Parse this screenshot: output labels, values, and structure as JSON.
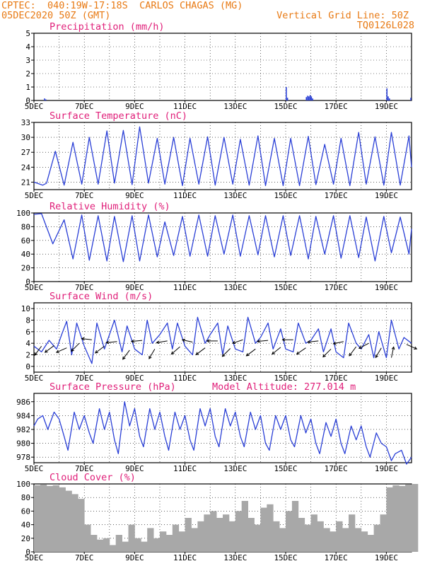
{
  "header": {
    "line1": "CPTEC:  040:19W-17:18S  CARLOS CHAGAS (MG)",
    "line2": "05DEC2020 50Z (GMT)",
    "grid_note": "Vertical Grid Line: 50Z",
    "code": "TQ0126L028"
  },
  "x_ticks": [
    "5DEC",
    "7DEC",
    "9DEC",
    "11DEC",
    "13DEC",
    "15DEC",
    "17DEC",
    "19DEC"
  ],
  "colors": {
    "line": "#2a3fd6",
    "title": "#e0207a",
    "header": "#e87a14",
    "cloud": "#a8a8a8",
    "wind": "#000000"
  },
  "chart_data": [
    {
      "type": "bar",
      "title": "Precipitation (mm/h)",
      "ylim": [
        0,
        5
      ],
      "yticks": [
        0,
        1,
        2,
        3,
        4,
        5
      ],
      "x_days": [
        0.4,
        0.45,
        10.0,
        10.05,
        10.8,
        10.85,
        10.9,
        10.95,
        11.0,
        11.05,
        14.0,
        14.05,
        14.1,
        14.95
      ],
      "values": [
        0.15,
        0.08,
        1.0,
        0.2,
        0.25,
        0.35,
        0.3,
        0.4,
        0.3,
        0.15,
        0.9,
        0.3,
        0.15,
        0.2
      ]
    },
    {
      "type": "line",
      "title": "Surface Temperature (nC)",
      "ylim": [
        19.5,
        33
      ],
      "yticks": [
        21,
        24,
        27,
        30,
        33
      ],
      "x_days": [
        0.0,
        0.35,
        0.5,
        0.85,
        1.2,
        1.55,
        1.9,
        2.2,
        2.55,
        2.9,
        3.2,
        3.55,
        3.9,
        4.2,
        4.55,
        4.9,
        5.2,
        5.55,
        5.9,
        6.2,
        6.55,
        6.9,
        7.2,
        7.55,
        7.9,
        8.2,
        8.55,
        8.9,
        9.2,
        9.55,
        9.9,
        10.2,
        10.55,
        10.9,
        11.2,
        11.55,
        11.9,
        12.2,
        12.55,
        12.9,
        13.2,
        13.55,
        13.9,
        14.2,
        14.55,
        14.9,
        15.0
      ],
      "values": [
        21.0,
        20.4,
        20.8,
        27.2,
        20.4,
        29.0,
        20.6,
        30.0,
        20.6,
        31.3,
        20.8,
        31.4,
        20.5,
        32.1,
        20.8,
        29.8,
        20.6,
        30.0,
        20.3,
        29.8,
        20.6,
        30.1,
        20.4,
        30.0,
        20.6,
        29.6,
        20.4,
        30.3,
        20.3,
        29.8,
        20.3,
        29.8,
        20.3,
        30.2,
        20.5,
        28.6,
        20.6,
        29.8,
        20.3,
        31.0,
        20.6,
        30.1,
        20.4,
        31.0,
        20.4,
        30.3,
        24.0
      ]
    },
    {
      "type": "line",
      "title": "Relative Humidity (%)",
      "ylim": [
        0,
        100
      ],
      "yticks": [
        0,
        20,
        40,
        60,
        80,
        100
      ],
      "x_days": [
        0.0,
        0.3,
        0.75,
        1.2,
        1.55,
        1.9,
        2.2,
        2.55,
        2.9,
        3.2,
        3.55,
        3.9,
        4.2,
        4.55,
        4.9,
        5.2,
        5.55,
        5.9,
        6.2,
        6.55,
        6.9,
        7.2,
        7.55,
        7.9,
        8.2,
        8.55,
        8.9,
        9.2,
        9.55,
        9.9,
        10.2,
        10.55,
        10.9,
        11.2,
        11.55,
        11.9,
        12.2,
        12.55,
        12.9,
        13.2,
        13.55,
        13.9,
        14.2,
        14.55,
        14.9,
        15.0
      ],
      "values": [
        98,
        99,
        55,
        90,
        33,
        97,
        31,
        96,
        30,
        95,
        29,
        96,
        30,
        97,
        36,
        87,
        38,
        95,
        37,
        97,
        37,
        96,
        40,
        97,
        37,
        96,
        39,
        96,
        36,
        96,
        38,
        96,
        33,
        95,
        40,
        96,
        34,
        96,
        35,
        94,
        30,
        95,
        42,
        94,
        40,
        77
      ]
    },
    {
      "type": "line",
      "title": "Surface Wind (m/s)",
      "ylim": [
        -1,
        11
      ],
      "yticks": [
        0,
        2,
        4,
        6,
        8,
        10
      ],
      "x_days": [
        0.0,
        0.3,
        0.6,
        0.9,
        1.1,
        1.3,
        1.5,
        1.7,
        2.0,
        2.3,
        2.5,
        2.8,
        3.0,
        3.2,
        3.5,
        3.7,
        4.0,
        4.3,
        4.5,
        4.7,
        5.0,
        5.3,
        5.5,
        5.7,
        6.0,
        6.3,
        6.5,
        6.8,
        7.0,
        7.3,
        7.5,
        7.7,
        8.0,
        8.3,
        8.5,
        8.8,
        9.0,
        9.3,
        9.5,
        9.8,
        10.0,
        10.3,
        10.5,
        10.8,
        11.0,
        11.3,
        11.5,
        11.8,
        12.0,
        12.3,
        12.5,
        12.8,
        13.0,
        13.3,
        13.5,
        13.7,
        14.0,
        14.2,
        14.5,
        14.7,
        15.0
      ],
      "values": [
        3.5,
        2.5,
        4.5,
        3.0,
        5.5,
        7.8,
        2.0,
        7.5,
        3.5,
        0.5,
        7.5,
        3.0,
        5.5,
        8.0,
        2.5,
        7.0,
        3.0,
        2.0,
        8.0,
        4.0,
        5.5,
        7.5,
        3.0,
        7.5,
        3.5,
        2.0,
        8.5,
        4.0,
        5.5,
        7.5,
        2.0,
        7.0,
        3.0,
        2.5,
        8.5,
        4.0,
        5.0,
        7.5,
        3.0,
        6.5,
        3.0,
        2.5,
        7.5,
        4.0,
        4.5,
        6.5,
        2.5,
        6.5,
        2.5,
        1.5,
        7.5,
        4.0,
        3.0,
        5.5,
        1.5,
        6.0,
        1.5,
        8.0,
        3.0,
        5.0,
        4.0
      ],
      "arrows": [
        {
          "day": 0.3,
          "speed": 3.5,
          "dx": -0.6,
          "dy": 0.8
        },
        {
          "day": 0.8,
          "speed": 3.6,
          "dx": -0.8,
          "dy": 0.6
        },
        {
          "day": 1.3,
          "speed": 3.2,
          "dx": -0.9,
          "dy": 0.4
        },
        {
          "day": 1.8,
          "speed": 4.0,
          "dx": -0.7,
          "dy": 0.7
        },
        {
          "day": 2.3,
          "speed": 4.6,
          "dx": -0.9,
          "dy": -0.1
        },
        {
          "day": 2.8,
          "speed": 3.5,
          "dx": -0.8,
          "dy": 0.6
        },
        {
          "day": 3.3,
          "speed": 4.3,
          "dx": -0.95,
          "dy": 0.1
        },
        {
          "day": 3.8,
          "speed": 2.8,
          "dx": -0.6,
          "dy": 0.8
        },
        {
          "day": 4.3,
          "speed": 4.5,
          "dx": -0.95,
          "dy": 0.1
        },
        {
          "day": 4.8,
          "speed": 3.0,
          "dx": -0.5,
          "dy": 0.85
        },
        {
          "day": 5.3,
          "speed": 4.4,
          "dx": -0.95,
          "dy": 0.15
        },
        {
          "day": 5.8,
          "speed": 3.4,
          "dx": -0.75,
          "dy": 0.65
        },
        {
          "day": 6.3,
          "speed": 4.2,
          "dx": -0.9,
          "dy": -0.2
        },
        {
          "day": 6.8,
          "speed": 3.2,
          "dx": -0.8,
          "dy": 0.6
        },
        {
          "day": 7.3,
          "speed": 4.4,
          "dx": -0.95,
          "dy": 0.0
        },
        {
          "day": 7.8,
          "speed": 3.1,
          "dx": -0.7,
          "dy": 0.7
        },
        {
          "day": 8.3,
          "speed": 4.6,
          "dx": -0.9,
          "dy": 0.3
        },
        {
          "day": 8.8,
          "speed": 3.0,
          "dx": -0.8,
          "dy": 0.6
        },
        {
          "day": 9.3,
          "speed": 4.5,
          "dx": -0.95,
          "dy": 0.1
        },
        {
          "day": 9.8,
          "speed": 3.3,
          "dx": -0.75,
          "dy": 0.6
        },
        {
          "day": 10.3,
          "speed": 4.6,
          "dx": -0.95,
          "dy": 0.0
        },
        {
          "day": 10.8,
          "speed": 3.2,
          "dx": -0.8,
          "dy": 0.55
        },
        {
          "day": 11.3,
          "speed": 4.4,
          "dx": -0.95,
          "dy": 0.1
        },
        {
          "day": 11.8,
          "speed": 3.0,
          "dx": -0.7,
          "dy": 0.7
        },
        {
          "day": 12.3,
          "speed": 4.3,
          "dx": -0.9,
          "dy": 0.2
        },
        {
          "day": 12.8,
          "speed": 3.4,
          "dx": -0.6,
          "dy": 0.8
        },
        {
          "day": 13.3,
          "speed": 4.0,
          "dx": -0.85,
          "dy": 0.45
        },
        {
          "day": 13.8,
          "speed": 3.2,
          "dx": -0.5,
          "dy": 0.85
        },
        {
          "day": 14.2,
          "speed": 1.5,
          "dx": 0.2,
          "dy": -0.95
        },
        {
          "day": 14.8,
          "speed": 3.8,
          "dx": 0.9,
          "dy": 0.4
        }
      ]
    },
    {
      "type": "line",
      "title": "Surface Pressure (hPa)",
      "annotation": "Model Altitude: 277.014 m",
      "ylim": [
        977.2,
        987.2
      ],
      "yticks": [
        978,
        980,
        982,
        984,
        986
      ],
      "x_days": [
        0.0,
        0.15,
        0.35,
        0.55,
        0.8,
        1.0,
        1.2,
        1.35,
        1.6,
        1.8,
        2.0,
        2.2,
        2.35,
        2.6,
        2.8,
        3.0,
        3.2,
        3.35,
        3.6,
        3.8,
        4.0,
        4.2,
        4.35,
        4.6,
        4.8,
        5.0,
        5.2,
        5.35,
        5.6,
        5.8,
        6.0,
        6.2,
        6.35,
        6.6,
        6.8,
        7.0,
        7.2,
        7.35,
        7.6,
        7.8,
        8.0,
        8.2,
        8.35,
        8.6,
        8.8,
        9.0,
        9.2,
        9.35,
        9.6,
        9.8,
        10.0,
        10.2,
        10.35,
        10.6,
        10.8,
        11.0,
        11.2,
        11.35,
        11.6,
        11.8,
        12.0,
        12.2,
        12.35,
        12.6,
        12.8,
        13.0,
        13.2,
        13.35,
        13.6,
        13.8,
        14.0,
        14.2,
        14.35,
        14.6,
        14.8,
        15.0
      ],
      "values": [
        982.5,
        983.5,
        984.0,
        982.0,
        984.5,
        983.5,
        981.0,
        979.0,
        984.5,
        982.0,
        984.0,
        981.5,
        980.0,
        985.0,
        982.0,
        984.5,
        980.5,
        978.5,
        986.0,
        982.5,
        985.0,
        981.0,
        979.5,
        985.0,
        982.0,
        984.5,
        981.0,
        979.0,
        984.5,
        982.0,
        984.0,
        980.5,
        979.0,
        985.0,
        982.5,
        985.0,
        981.0,
        979.5,
        985.0,
        982.5,
        984.5,
        981.0,
        979.5,
        984.5,
        982.0,
        984.0,
        980.0,
        979.0,
        984.0,
        982.0,
        984.0,
        980.5,
        979.5,
        984.0,
        981.5,
        983.5,
        980.0,
        978.5,
        983.0,
        981.0,
        983.5,
        980.0,
        978.5,
        982.5,
        980.5,
        982.5,
        979.5,
        978.0,
        981.5,
        980.0,
        979.5,
        977.5,
        978.5,
        979.0,
        977.0,
        978.0
      ]
    },
    {
      "type": "bar",
      "title": "Cloud Cover (%)",
      "ylim": [
        0,
        100
      ],
      "yticks": [
        0,
        20,
        40,
        60,
        80,
        100
      ],
      "x_days": [
        0.0,
        0.25,
        0.5,
        0.75,
        1.0,
        1.25,
        1.5,
        1.75,
        2.0,
        2.25,
        2.5,
        2.75,
        3.0,
        3.25,
        3.5,
        3.75,
        4.0,
        4.25,
        4.5,
        4.75,
        5.0,
        5.25,
        5.5,
        5.75,
        6.0,
        6.25,
        6.5,
        6.75,
        7.0,
        7.25,
        7.5,
        7.75,
        8.0,
        8.25,
        8.5,
        8.75,
        9.0,
        9.25,
        9.5,
        9.75,
        10.0,
        10.25,
        10.5,
        10.75,
        11.0,
        11.25,
        11.5,
        11.75,
        12.0,
        12.25,
        12.5,
        12.75,
        13.0,
        13.25,
        13.5,
        13.75,
        14.0,
        14.25,
        14.5,
        14.75,
        15.0
      ],
      "values": [
        98,
        99,
        97,
        98,
        95,
        90,
        85,
        78,
        40,
        25,
        18,
        20,
        10,
        25,
        15,
        40,
        20,
        15,
        35,
        20,
        30,
        25,
        40,
        30,
        50,
        35,
        45,
        55,
        60,
        50,
        55,
        45,
        60,
        75,
        50,
        40,
        65,
        70,
        45,
        35,
        60,
        75,
        50,
        40,
        55,
        45,
        35,
        30,
        45,
        35,
        55,
        35,
        30,
        25,
        40,
        55,
        95,
        98,
        97,
        99,
        100
      ]
    }
  ]
}
